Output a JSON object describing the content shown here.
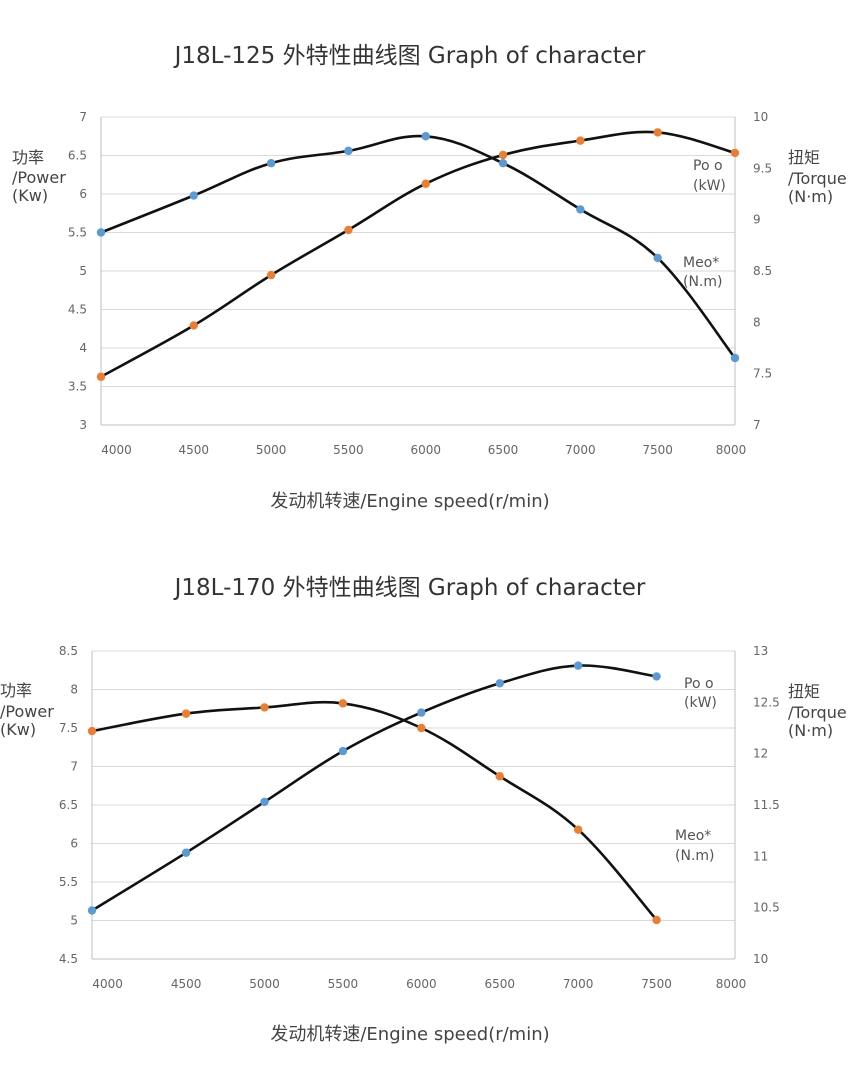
{
  "chart_data": [
    {
      "type": "line",
      "title": "J18L-125  外特性曲线图  Graph of character",
      "xlabel": "发动机转速/Engine speed(r/min)",
      "ylabel_left": [
        "功率",
        "/Power",
        "(Kw)"
      ],
      "ylabel_right": [
        "扭矩",
        "/Torque",
        "(N·m)"
      ],
      "xlim": [
        3900,
        8000
      ],
      "x_ticks": [
        4000,
        4500,
        5000,
        5500,
        6000,
        6500,
        7000,
        7500,
        8000
      ],
      "y_left_lim": [
        3,
        7
      ],
      "y_left_ticks": [
        "3",
        "3.5",
        "4",
        "4.5",
        "5",
        "5.5",
        "6",
        "6.5",
        "7"
      ],
      "y_right_lim": [
        7,
        10
      ],
      "y_right_ticks": [
        "7",
        "7.5",
        "8",
        "8.5",
        "9",
        "9.5",
        "10"
      ],
      "grid": true,
      "series": [
        {
          "axis": "left",
          "color": "#5b9bd5",
          "x": [
            3900,
            4500,
            5000,
            5500,
            6000,
            6500,
            7000,
            7500,
            8000
          ],
          "values": [
            5.5,
            5.98,
            6.4,
            6.56,
            6.75,
            6.4,
            5.8,
            5.17,
            3.87
          ]
        },
        {
          "axis": "right",
          "color": "#ed7d31",
          "x": [
            3900,
            4500,
            5000,
            5500,
            6000,
            6500,
            7000,
            7500,
            8000
          ],
          "values": [
            7.47,
            7.97,
            8.46,
            8.9,
            9.35,
            9.63,
            9.77,
            9.85,
            9.65
          ]
        }
      ],
      "legend_labels": [
        {
          "lines": [
            "Po o",
            "(kW)"
          ]
        },
        {
          "lines": [
            "Meo*",
            "(N.m)"
          ]
        }
      ]
    },
    {
      "type": "line",
      "title": "J18L-170  外特性曲线图  Graph of character",
      "xlabel": "发动机转速/Engine speed(r/min)",
      "ylabel_left": [
        "功率",
        "/Power",
        "(Kw)"
      ],
      "ylabel_right": [
        "扭矩",
        "/Torque",
        "(N·m)"
      ],
      "xlim": [
        3900,
        8000
      ],
      "x_ticks": [
        4000,
        4500,
        5000,
        5500,
        6000,
        6500,
        7000,
        7500,
        8000
      ],
      "y_left_lim": [
        4.5,
        8.5
      ],
      "y_left_ticks": [
        "4.5",
        "5",
        "5.5",
        "6",
        "6.5",
        "7",
        "7.5",
        "8",
        "8.5"
      ],
      "y_right_lim": [
        10,
        13
      ],
      "y_right_ticks": [
        "10",
        "10.5",
        "11",
        "11.5",
        "12",
        "12.5",
        "13"
      ],
      "grid": true,
      "series": [
        {
          "axis": "left",
          "color": "#5b9bd5",
          "x": [
            3900,
            4500,
            5000,
            5500,
            6000,
            6500,
            7000,
            7500
          ],
          "values": [
            5.13,
            5.88,
            6.54,
            7.2,
            7.7,
            8.08,
            8.31,
            8.17
          ]
        },
        {
          "axis": "right",
          "color": "#ed7d31",
          "x": [
            3900,
            4500,
            5000,
            5500,
            6000,
            6500,
            7000,
            7500
          ],
          "values": [
            12.22,
            12.39,
            12.45,
            12.49,
            12.25,
            11.78,
            11.26,
            10.38
          ]
        }
      ],
      "legend_labels": [
        {
          "lines": [
            "Po o",
            "(kW)"
          ]
        },
        {
          "lines": [
            "Meo*",
            "(N.m)"
          ]
        }
      ]
    }
  ]
}
